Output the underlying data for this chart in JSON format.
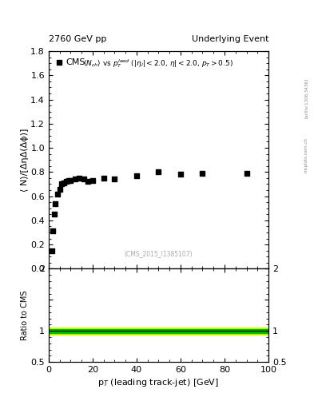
{
  "title_left": "2760 GeV pp",
  "title_right": "Underlying Event",
  "cms_label": "CMS",
  "watermark": "(CMS_2015_I1385107)",
  "arxiv_label": "[arXiv:1306.3436]",
  "mcplots_label": "mcplots.cern.ch",
  "ylabel_main": "⟨ N⟩/[ΔηΔ(Δϕ)]",
  "ylabel_ratio": "Ratio to CMS",
  "xlabel": "p$_T$ (leading track-jet) [GeV]",
  "ylim_main": [
    0,
    1.8
  ],
  "ylim_ratio": [
    0.5,
    2.0
  ],
  "xlim": [
    0,
    100
  ],
  "data_x": [
    1.5,
    2.0,
    2.5,
    3.0,
    4.0,
    5.0,
    6.0,
    7.0,
    8.0,
    9.0,
    10.0,
    12.0,
    14.0,
    16.0,
    18.0,
    20.0,
    25.0,
    30.0,
    40.0,
    50.0,
    60.0,
    70.0,
    90.0
  ],
  "data_y": [
    0.15,
    0.31,
    0.45,
    0.54,
    0.62,
    0.66,
    0.7,
    0.71,
    0.72,
    0.73,
    0.73,
    0.74,
    0.75,
    0.74,
    0.72,
    0.73,
    0.75,
    0.74,
    0.77,
    0.8,
    0.78,
    0.79,
    0.79
  ],
  "data_color": "black",
  "marker": "s",
  "marker_size": 5,
  "ratio_line_y": 1.0,
  "ratio_band_green_low": 0.97,
  "ratio_band_green_high": 1.03,
  "ratio_band_yellow_low": 0.94,
  "ratio_band_yellow_high": 1.06,
  "green_color": "#00bb00",
  "yellow_color": "#ddff00",
  "ratio_line_color": "black",
  "background_color": "white"
}
